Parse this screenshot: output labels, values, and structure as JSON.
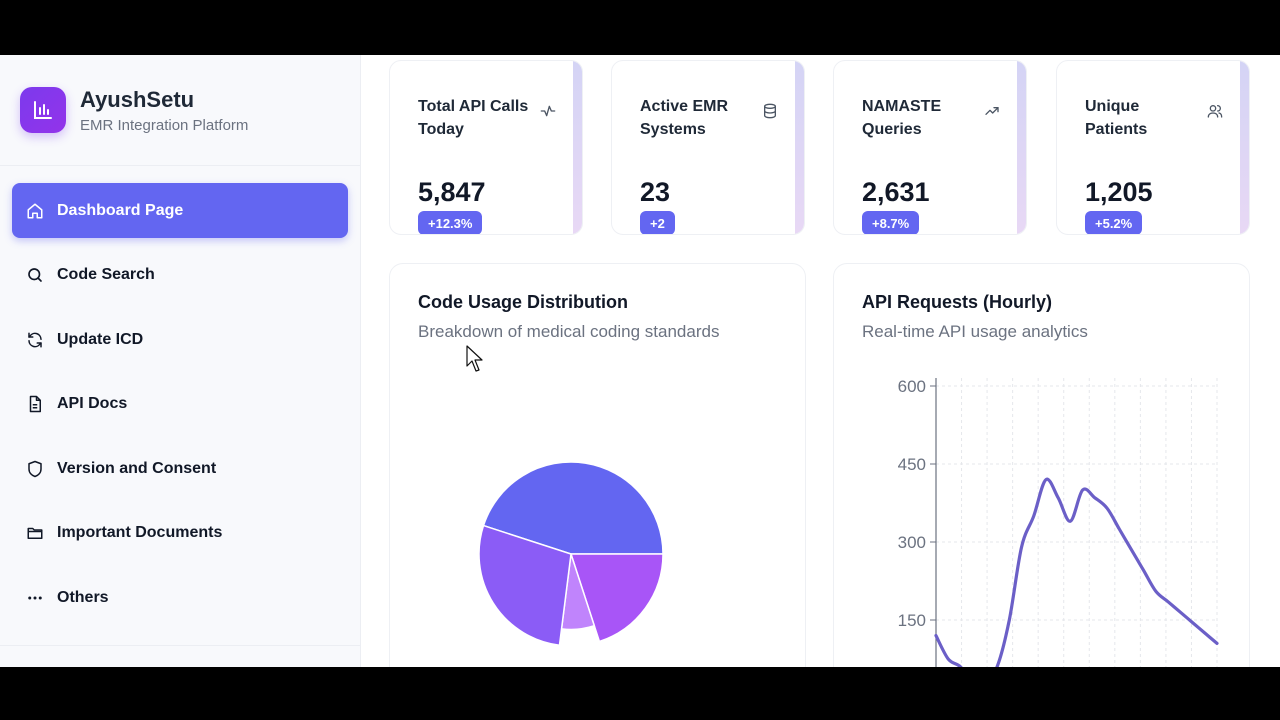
{
  "brand": {
    "title": "AyushSetu",
    "subtitle": "EMR Integration Platform",
    "logo_icon": "bar-chart-icon"
  },
  "sidebar": {
    "items": [
      {
        "label": "Dashboard Page",
        "icon": "home-icon",
        "active": true
      },
      {
        "label": "Code Search",
        "icon": "search-icon",
        "active": false
      },
      {
        "label": "Update ICD",
        "icon": "refresh-icon",
        "active": false
      },
      {
        "label": "API Docs",
        "icon": "document-icon",
        "active": false
      },
      {
        "label": "Version and Consent",
        "icon": "shield-icon",
        "active": false
      },
      {
        "label": "Important Documents",
        "icon": "folder-icon",
        "active": false
      },
      {
        "label": "Others",
        "icon": "more-icon",
        "active": false
      }
    ]
  },
  "stats": [
    {
      "title": "Total API Calls Today",
      "value": "5,847",
      "change": "+12.3%",
      "icon": "activity-icon"
    },
    {
      "title": "Active EMR Systems",
      "value": "23",
      "change": "+2",
      "icon": "database-icon"
    },
    {
      "title": "NAMASTE Queries",
      "value": "2,631",
      "change": "+8.7%",
      "icon": "trending-up-icon"
    },
    {
      "title": "Unique Patients",
      "value": "1,205",
      "change": "+5.2%",
      "icon": "users-icon"
    }
  ],
  "cards": {
    "distribution": {
      "title": "Code Usage Distribution",
      "subtitle": "Breakdown of medical coding standards"
    },
    "requests": {
      "title": "API Requests (Hourly)",
      "subtitle": "Real-time API usage analytics"
    }
  },
  "colors": {
    "accent": "#6366f1",
    "line": "#6b5fc7",
    "pie": [
      "#6366f1",
      "#a855f7",
      "#c084fc",
      "#8b5cf6"
    ]
  },
  "chart_data": [
    {
      "type": "pie",
      "title": "Code Usage Distribution",
      "slices": [
        {
          "value": 45
        },
        {
          "value": 20
        },
        {
          "value": 7
        },
        {
          "value": 28
        }
      ]
    },
    {
      "type": "line",
      "title": "API Requests (Hourly)",
      "y_ticks": [
        "600",
        "450",
        "300",
        "150"
      ],
      "ylim": [
        0,
        600
      ],
      "grid": true,
      "x": [
        0,
        1,
        2,
        3,
        4,
        5,
        6,
        7,
        8,
        9,
        10,
        11,
        12,
        13,
        14,
        15,
        16,
        17,
        18,
        19,
        20,
        21,
        22,
        23
      ],
      "y": [
        120,
        75,
        60,
        30,
        30,
        60,
        150,
        290,
        350,
        420,
        385,
        340,
        400,
        385,
        365,
        325,
        285,
        245,
        205,
        185,
        165,
        145,
        125,
        105
      ]
    }
  ]
}
